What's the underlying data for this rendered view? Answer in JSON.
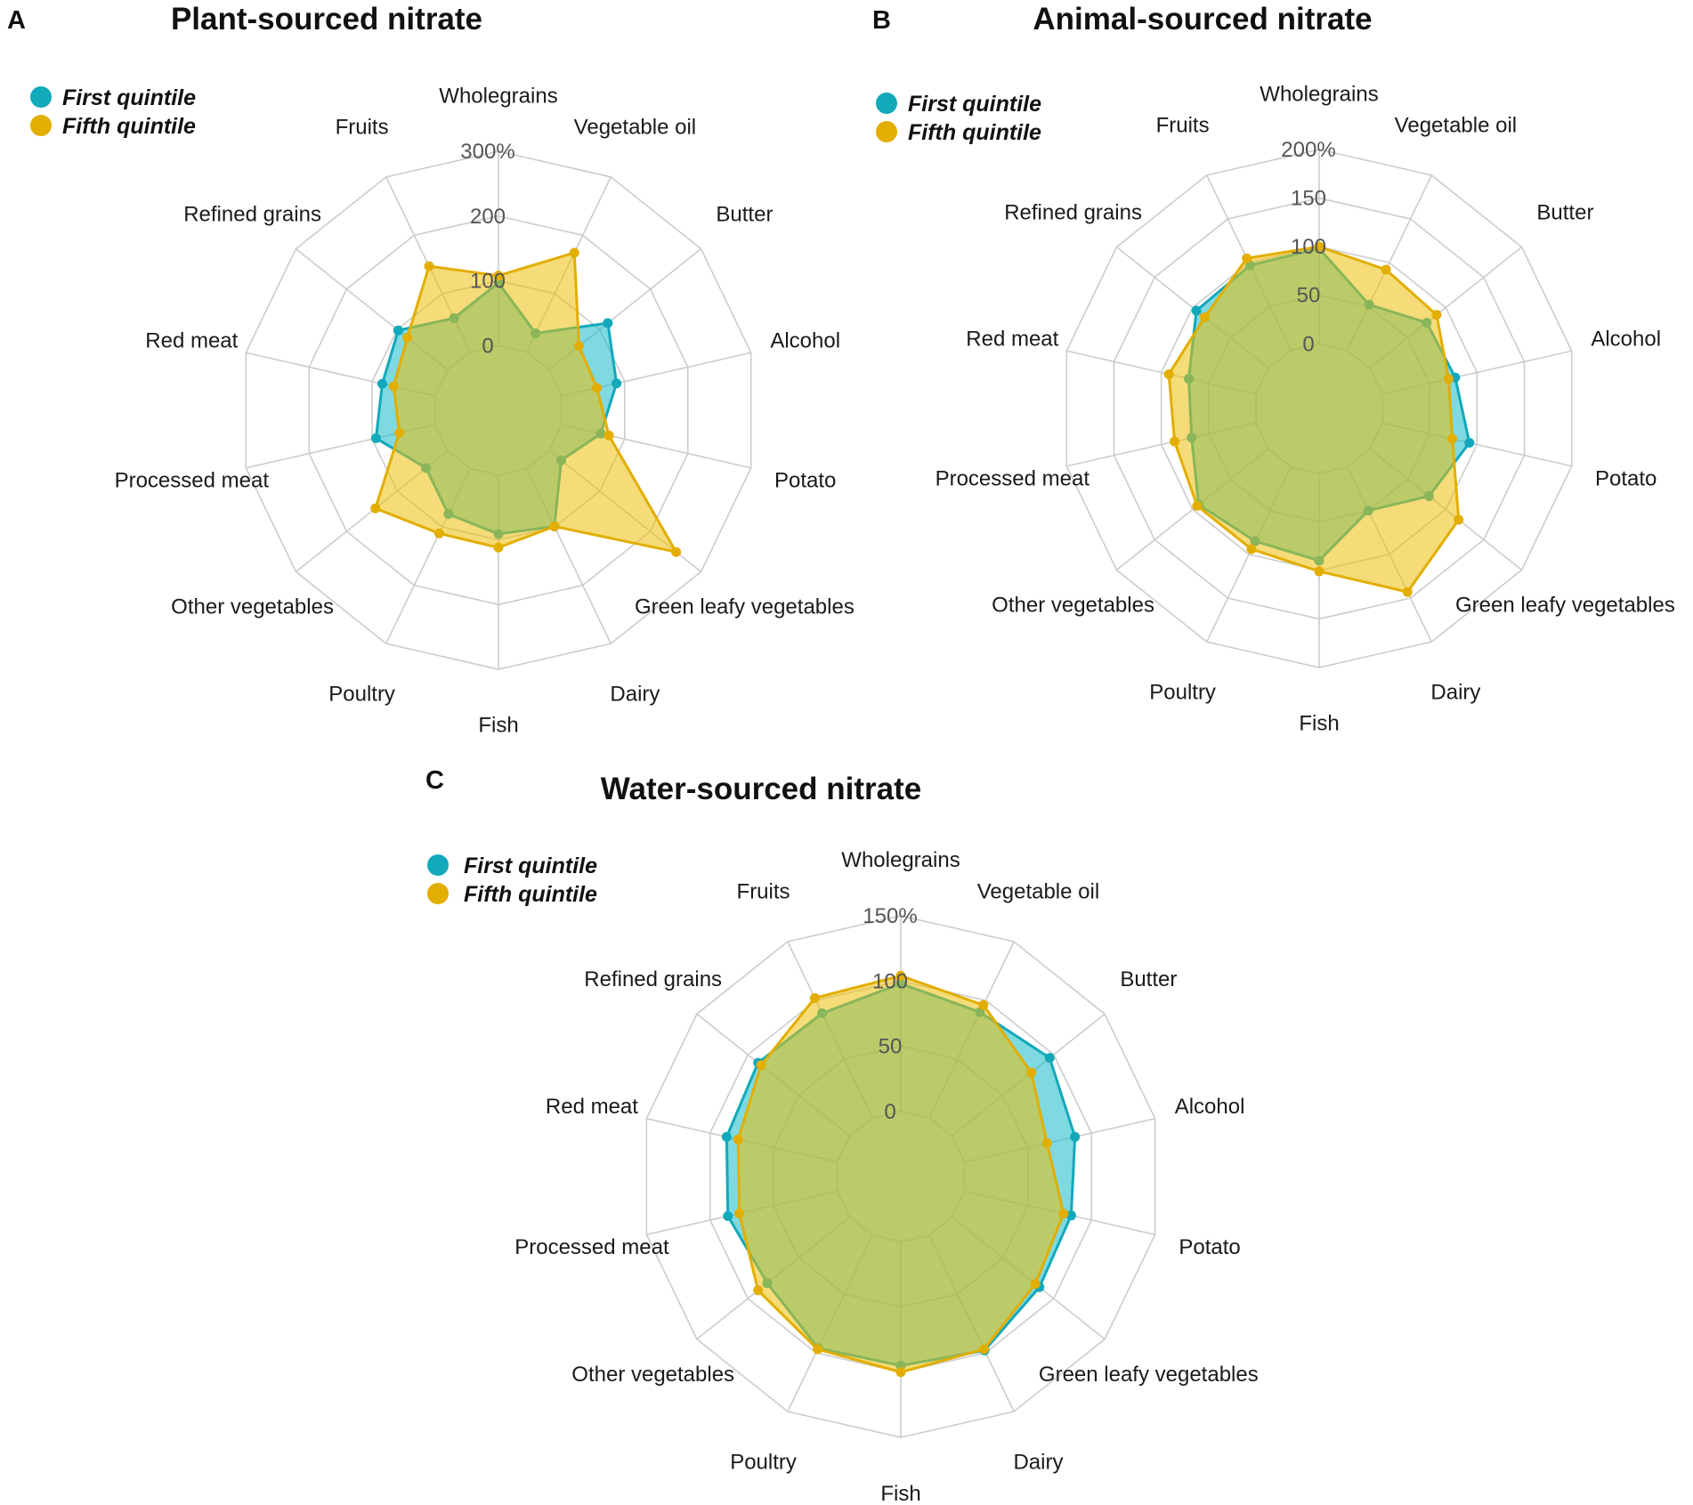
{
  "colors": {
    "first": "#12A9BA",
    "first_fill": "rgba(20,185,200,0.55)",
    "fifth": "#E2AE00",
    "fifth_fill": "rgba(236,192,10,0.55)",
    "grid": "#cccccc"
  },
  "chart_data": [
    {
      "type": "radar",
      "panel": "A",
      "title": "Plant-sourced nitrate",
      "categories": [
        "Wholegrains",
        "Vegetable oil",
        "Butter",
        "Alcohol",
        "Potato",
        "Green leafy vegetables",
        "Dairy",
        "Fish",
        "Poultry",
        "Other vegetables",
        "Processed meat",
        "Red meat",
        "Refined grains",
        "Fruits"
      ],
      "ticks": [
        "0",
        "100",
        "200",
        "300%"
      ],
      "tick_values": [
        0,
        100,
        200,
        300
      ],
      "range": [
        0,
        300
      ],
      "legend": [
        "First quintile",
        "Fifth quintile"
      ],
      "legend_position": "top-left",
      "series": [
        {
          "name": "First quintile",
          "values": [
            97,
            32,
            116,
            87,
            62,
            24,
            99,
            91,
            78,
            43,
            94,
            84,
            98,
            58
          ]
        },
        {
          "name": "Fifth quintile",
          "values": [
            108,
            170,
            59,
            56,
            75,
            251,
            99,
            112,
            111,
            143,
            57,
            66,
            80,
            147
          ]
        }
      ]
    },
    {
      "type": "radar",
      "panel": "B",
      "title": "Animal-sourced nitrate",
      "categories": [
        "Wholegrains",
        "Vegetable oil",
        "Butter",
        "Alcohol",
        "Potato",
        "Green leafy vegetables",
        "Dairy",
        "Fish",
        "Poultry",
        "Other vegetables",
        "Processed meat",
        "Red meat",
        "Refined grains",
        "Fruits"
      ],
      "ticks": [
        "0",
        "50",
        "100",
        "150",
        "200%"
      ],
      "tick_values": [
        0,
        50,
        100,
        150,
        200
      ],
      "range": [
        0,
        200
      ],
      "legend": [
        "First quintile",
        "Fifth quintile"
      ],
      "legend_position": "top-left",
      "series": [
        {
          "name": "First quintile",
          "values": [
            98,
            52,
            75,
            77,
            92,
            78,
            50,
            90,
            85,
            92,
            68,
            71,
            95,
            97
          ]
        },
        {
          "name": "Fifth quintile",
          "values": [
            100,
            92,
            88,
            70,
            74,
            117,
            143,
            101,
            94,
            94,
            86,
            92,
            84,
            105
          ]
        }
      ]
    },
    {
      "type": "radar",
      "panel": "C",
      "title": "Water-sourced nitrate",
      "categories": [
        "Wholegrains",
        "Vegetable oil",
        "Butter",
        "Alcohol",
        "Potato",
        "Green leafy vegetables",
        "Dairy",
        "Fish",
        "Poultry",
        "Other vegetables",
        "Processed meat",
        "Red meat",
        "Refined grains",
        "Fruits"
      ],
      "ticks": [
        "0",
        "50",
        "100",
        "150%"
      ],
      "tick_values": [
        0,
        50,
        100,
        150
      ],
      "range": [
        0,
        150
      ],
      "legend": [
        "First quintile",
        "Fifth quintile"
      ],
      "legend_position": "top-left",
      "series": [
        {
          "name": "First quintile",
          "values": [
            98,
            90,
            96,
            87,
            84,
            86,
            98,
            95,
            96,
            81,
            86,
            87,
            90,
            89
          ]
        },
        {
          "name": "Fifth quintile",
          "values": [
            104,
            96,
            78,
            65,
            78,
            82,
            97,
            100,
            97,
            90,
            77,
            78,
            87,
            102
          ]
        }
      ]
    }
  ]
}
